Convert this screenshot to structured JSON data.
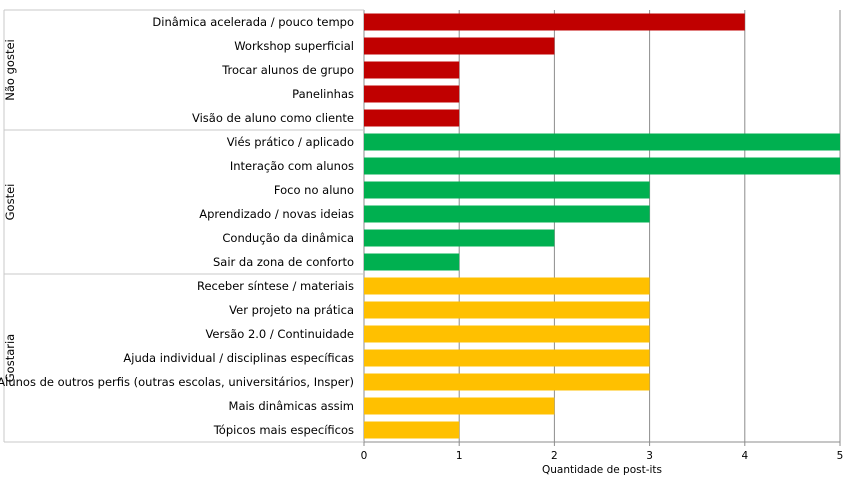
{
  "chart_data": {
    "type": "bar",
    "orientation": "horizontal",
    "xlabel": "Quantidade de post-its",
    "ylabel": "",
    "xlim": [
      0,
      5
    ],
    "xticks": [
      "0",
      "1",
      "2",
      "3",
      "4",
      "5"
    ],
    "grid": true,
    "legend": "none",
    "groups": [
      {
        "name": "Não gostei",
        "color": "#C00000",
        "categories": [
          "Dinâmica acelerada / pouco tempo",
          "Workshop superficial",
          "Trocar alunos de grupo",
          "Panelinhas",
          "Visão de aluno como cliente"
        ],
        "values": [
          4,
          2,
          1,
          1,
          1
        ]
      },
      {
        "name": "Gostei",
        "color": "#00B050",
        "categories": [
          "Viés prático / aplicado",
          "Interação com alunos",
          "Foco no aluno",
          "Aprendizado / novas ideias",
          "Condução da dinâmica",
          "Sair da zona de conforto"
        ],
        "values": [
          5,
          5,
          3,
          3,
          2,
          1
        ]
      },
      {
        "name": "Gostaria",
        "color": "#FFC000",
        "categories": [
          "Receber síntese / materiais",
          "Ver projeto na prática",
          "Versão 2.0 / Continuidade",
          "Ajuda individual / disciplinas específicas",
          "Alunos de outros perfis (outras escolas, universitários, Insper)",
          "Mais dinâmicas assim",
          "Tópicos mais específicos"
        ],
        "values": [
          3,
          3,
          3,
          3,
          3,
          2,
          1
        ]
      }
    ]
  }
}
